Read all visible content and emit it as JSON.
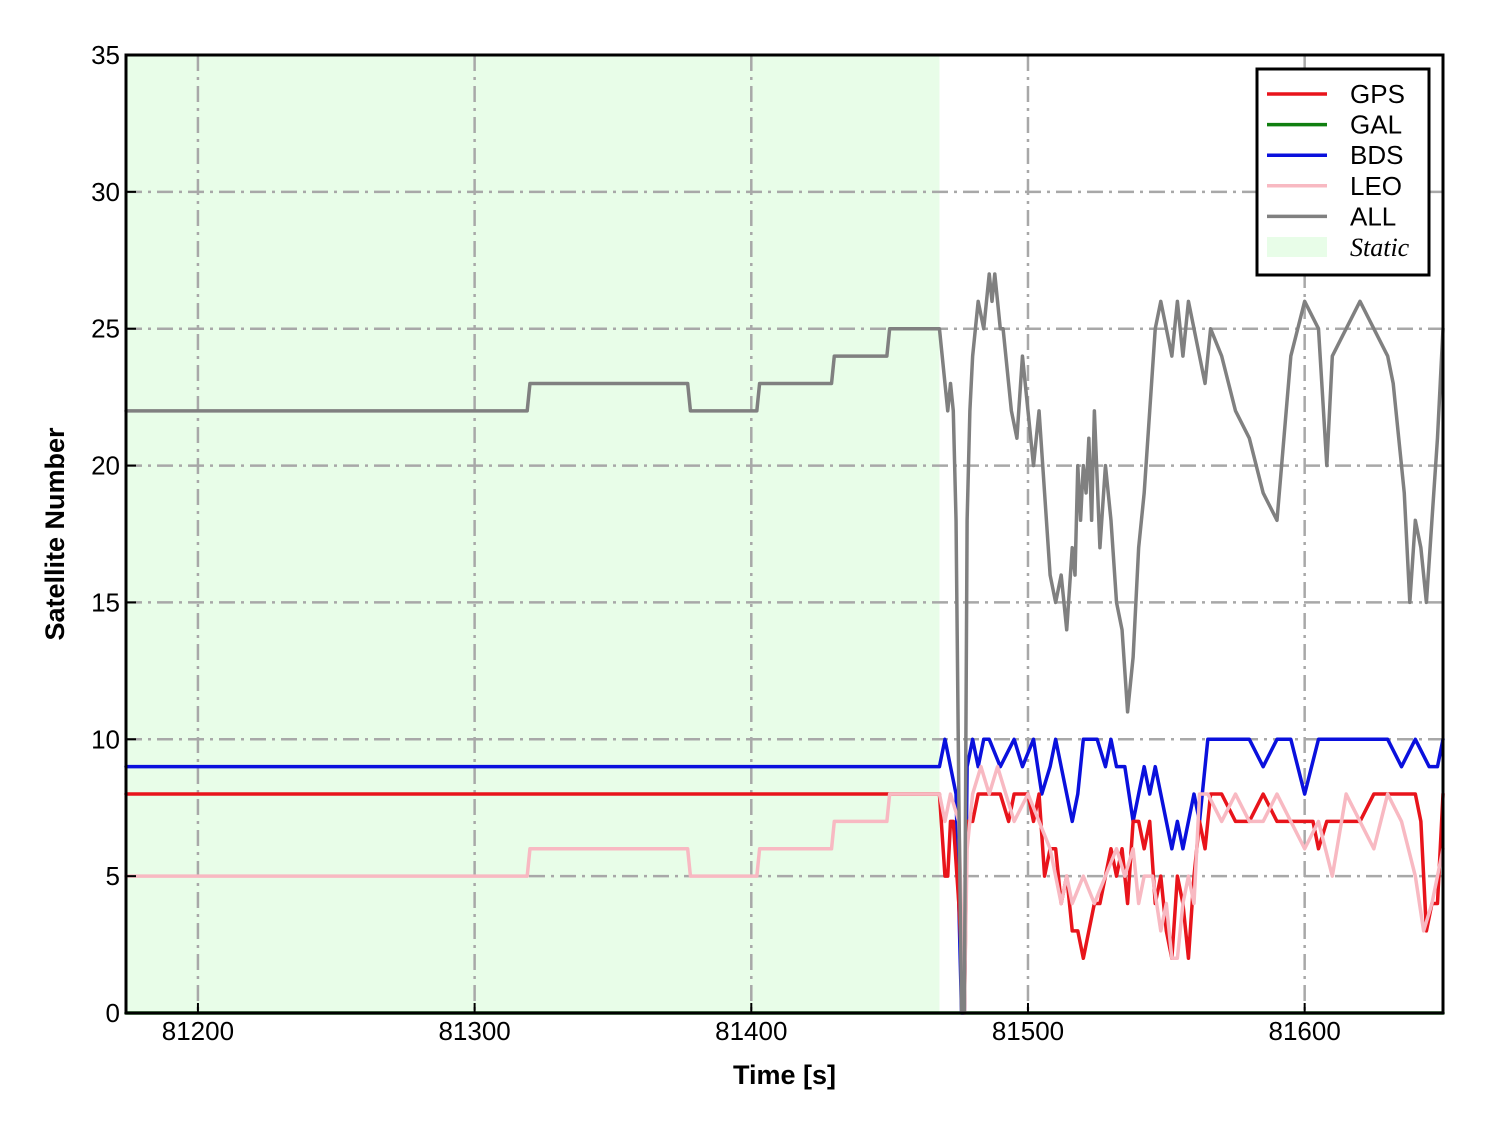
{
  "chart_data": {
    "type": "line",
    "xlabel": "Time [s]",
    "ylabel": "Satellite Number",
    "xlim": [
      81174,
      81650
    ],
    "ylim": [
      0,
      35
    ],
    "xticks": [
      81200,
      81300,
      81400,
      81500,
      81600
    ],
    "yticks": [
      0,
      5,
      10,
      15,
      20,
      25,
      30,
      35
    ],
    "grid": true,
    "legend_position": "top-right",
    "shaded_regions": [
      {
        "name": "Static",
        "x_start": 81174,
        "x_end": 81468,
        "color": "#e8fde8"
      }
    ],
    "series": [
      {
        "name": "GPS",
        "color": "#e8141b",
        "x": [
          81174,
          81450,
          81468,
          81470,
          81471,
          81472,
          81473,
          81475,
          81477,
          81478,
          81480,
          81482,
          81484,
          81486,
          81488,
          81490,
          81493,
          81495,
          81500,
          81502,
          81504,
          81506,
          81508,
          81510,
          81512,
          81514,
          81516,
          81518,
          81520,
          81522,
          81524,
          81526,
          81528,
          81530,
          81532,
          81534,
          81536,
          81538,
          81540,
          81542,
          81544,
          81546,
          81548,
          81550,
          81552,
          81554,
          81556,
          81558,
          81560,
          81562,
          81564,
          81566,
          81568,
          81570,
          81575,
          81580,
          81585,
          81590,
          81595,
          81600,
          81603,
          81605,
          81608,
          81610,
          81615,
          81620,
          81625,
          81630,
          81635,
          81640,
          81642,
          81644,
          81646,
          81648,
          81650
        ],
        "y": [
          8,
          8,
          8,
          5,
          5,
          7,
          7,
          4,
          0,
          7,
          7,
          8,
          8,
          8,
          8,
          8,
          7,
          8,
          8,
          7,
          8,
          5,
          6,
          6,
          4,
          5,
          3,
          3,
          2,
          3,
          4,
          4,
          5,
          6,
          5,
          6,
          4,
          7,
          7,
          6,
          7,
          4,
          5,
          3,
          2,
          5,
          4,
          2,
          5,
          7,
          6,
          8,
          8,
          8,
          7,
          7,
          8,
          7,
          7,
          7,
          7,
          6,
          7,
          7,
          7,
          7,
          8,
          8,
          8,
          8,
          7,
          3,
          4,
          4,
          8
        ]
      },
      {
        "name": "GAL",
        "color": "#107f10",
        "x": [
          81174,
          81650
        ],
        "y": [
          0,
          0
        ]
      },
      {
        "name": "BDS",
        "color": "#0a10dd",
        "x": [
          81174,
          81468,
          81470,
          81472,
          81474,
          81476,
          81477,
          81478,
          81480,
          81482,
          81484,
          81486,
          81490,
          81495,
          81498,
          81502,
          81505,
          81508,
          81510,
          81512,
          81514,
          81516,
          81518,
          81520,
          81525,
          81528,
          81530,
          81532,
          81535,
          81538,
          81540,
          81542,
          81544,
          81546,
          81548,
          81550,
          81552,
          81554,
          81556,
          81558,
          81560,
          81562,
          81565,
          81570,
          81580,
          81585,
          81590,
          81595,
          81600,
          81605,
          81610,
          81620,
          81630,
          81635,
          81640,
          81645,
          81648,
          81650
        ],
        "y": [
          9,
          9,
          10,
          9,
          8,
          0,
          0,
          9,
          10,
          9,
          10,
          10,
          9,
          10,
          9,
          10,
          8,
          9,
          10,
          9,
          8,
          7,
          8,
          10,
          10,
          9,
          10,
          9,
          9,
          7,
          8,
          9,
          8,
          9,
          8,
          7,
          6,
          7,
          6,
          7,
          8,
          7,
          10,
          10,
          10,
          9,
          10,
          10,
          8,
          10,
          10,
          10,
          10,
          9,
          10,
          9,
          9,
          10
        ]
      },
      {
        "name": "LEO",
        "color": "#f8b9c2",
        "x": [
          81174,
          81319,
          81320,
          81377,
          81378,
          81402,
          81403,
          81429,
          81430,
          81449,
          81450,
          81468,
          81470,
          81472,
          81475,
          81477,
          81478,
          81480,
          81483,
          81486,
          81489,
          81492,
          81495,
          81500,
          81504,
          81508,
          81510,
          81512,
          81514,
          81516,
          81520,
          81524,
          81528,
          81532,
          81535,
          81538,
          81540,
          81542,
          81545,
          81548,
          81550,
          81552,
          81554,
          81556,
          81558,
          81560,
          81562,
          81565,
          81570,
          81575,
          81580,
          81585,
          81590,
          81595,
          81600,
          81605,
          81610,
          81615,
          81620,
          81625,
          81630,
          81635,
          81640,
          81643,
          81646,
          81650
        ],
        "y": [
          5,
          5,
          6,
          6,
          5,
          5,
          6,
          6,
          7,
          7,
          8,
          8,
          7,
          8,
          7,
          0,
          6,
          8,
          9,
          8,
          9,
          8,
          7,
          8,
          7,
          6,
          5,
          4,
          5,
          4,
          5,
          4,
          5,
          6,
          5,
          6,
          4,
          5,
          5,
          3,
          4,
          2,
          2,
          4,
          5,
          4,
          8,
          8,
          7,
          8,
          7,
          7,
          8,
          7,
          6,
          7,
          5,
          8,
          7,
          6,
          8,
          7,
          5,
          3,
          4,
          6
        ]
      },
      {
        "name": "ALL",
        "color": "#808080",
        "x": [
          81174,
          81319,
          81320,
          81377,
          81378,
          81402,
          81403,
          81429,
          81430,
          81449,
          81450,
          81468,
          81470,
          81471,
          81472,
          81473,
          81474,
          81475,
          81476,
          81477,
          81478,
          81479,
          81480,
          81482,
          81484,
          81486,
          81487,
          81488,
          81489,
          81490,
          81491,
          81492,
          81494,
          81496,
          81498,
          81500,
          81502,
          81504,
          81506,
          81508,
          81510,
          81512,
          81514,
          81516,
          81517,
          81518,
          81519,
          81520,
          81521,
          81522,
          81523,
          81524,
          81526,
          81528,
          81530,
          81532,
          81534,
          81536,
          81538,
          81540,
          81542,
          81544,
          81546,
          81548,
          81550,
          81552,
          81554,
          81555,
          81556,
          81558,
          81560,
          81562,
          81564,
          81566,
          81570,
          81575,
          81580,
          81585,
          81590,
          81595,
          81600,
          81605,
          81608,
          81610,
          81615,
          81620,
          81625,
          81630,
          81632,
          81634,
          81636,
          81638,
          81640,
          81642,
          81644,
          81646,
          81648,
          81650
        ],
        "y": [
          22,
          22,
          23,
          23,
          22,
          22,
          23,
          23,
          24,
          24,
          25,
          25,
          23,
          22,
          23,
          22,
          18,
          8,
          0,
          0,
          18,
          22,
          24,
          26,
          25,
          27,
          26,
          27,
          26,
          25,
          25,
          24,
          22,
          21,
          24,
          22,
          20,
          22,
          19,
          16,
          15,
          16,
          14,
          17,
          16,
          20,
          18,
          20,
          19,
          21,
          18,
          22,
          17,
          20,
          18,
          15,
          14,
          11,
          13,
          17,
          19,
          22,
          25,
          26,
          25,
          24,
          26,
          25,
          24,
          26,
          25,
          24,
          23,
          25,
          24,
          22,
          21,
          19,
          18,
          24,
          26,
          25,
          20,
          24,
          25,
          26,
          25,
          24,
          23,
          21,
          19,
          15,
          18,
          17,
          15,
          18,
          21,
          25
        ]
      }
    ]
  },
  "legend": {
    "items": [
      {
        "label": "GPS",
        "color": "#e8141b",
        "kind": "line"
      },
      {
        "label": "GAL",
        "color": "#107f10",
        "kind": "line"
      },
      {
        "label": "BDS",
        "color": "#0a10dd",
        "kind": "line"
      },
      {
        "label": "LEO",
        "color": "#f8b9c2",
        "kind": "line"
      },
      {
        "label": "ALL",
        "color": "#808080",
        "kind": "line"
      },
      {
        "label": "Static",
        "color": "#e8fde8",
        "kind": "patch"
      }
    ]
  }
}
